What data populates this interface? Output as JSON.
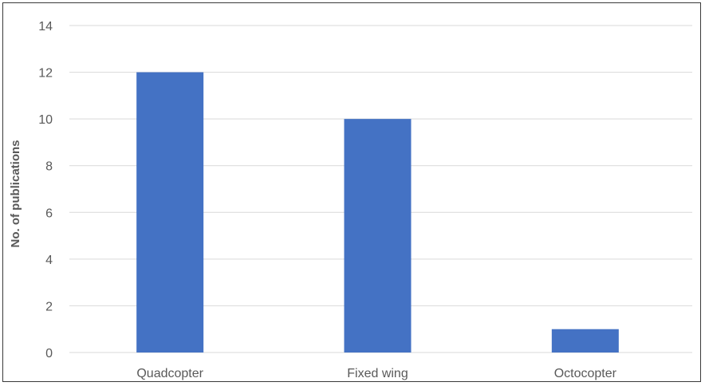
{
  "chart_data": {
    "type": "bar",
    "title": "",
    "xlabel": "",
    "ylabel": "No. of publications",
    "categories": [
      "Quadcopter",
      "Fixed wing",
      "Octocopter"
    ],
    "values": [
      12,
      10,
      1
    ],
    "ylim": [
      0,
      14
    ],
    "yticks": [
      0,
      2,
      4,
      6,
      8,
      10,
      12,
      14
    ],
    "grid": true,
    "legend": "none",
    "bar_color": "#4472c4",
    "grid_color": "#d9d9d9"
  }
}
